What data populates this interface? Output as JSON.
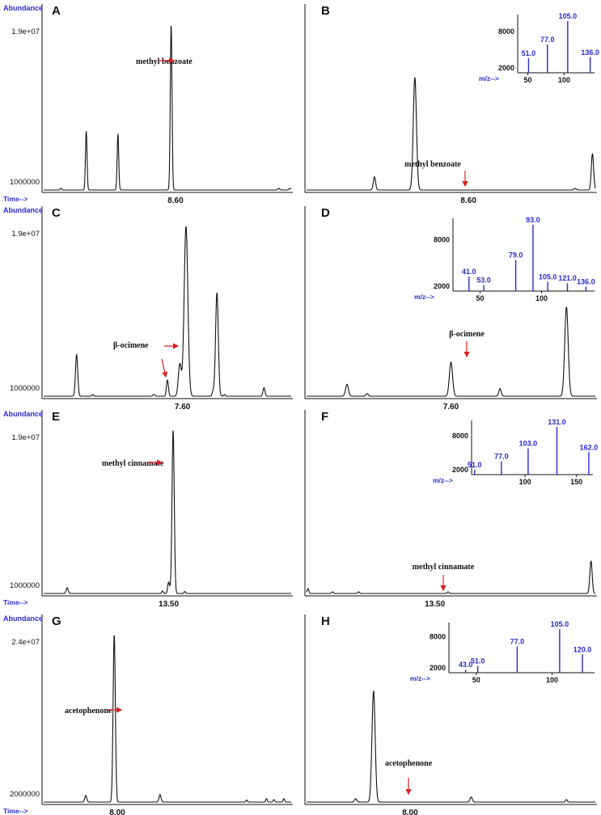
{
  "panels": [
    {
      "id": "A",
      "letter": "A",
      "type": "chromatogram",
      "show_abundance": true,
      "show_time": true,
      "y_labels": {
        "top": "1.9e+07",
        "bottom": "1000000"
      },
      "x_tick": "8.60",
      "annotation": {
        "text": "methyl benzoate",
        "position": "left"
      },
      "peaks": [
        {
          "x": 0.07,
          "h": 0.01,
          "w": 0.0035
        },
        {
          "x": 0.172,
          "h": 0.355,
          "w": 0.0032
        },
        {
          "x": 0.3,
          "h": 0.338,
          "w": 0.0032
        },
        {
          "x": 0.515,
          "h": 1.0,
          "w": 0.0035
        },
        {
          "x": 0.95,
          "h": 0.01,
          "w": 0.004
        },
        {
          "x": 0.995,
          "h": 0.01,
          "w": 0.004
        }
      ]
    },
    {
      "id": "B",
      "letter": "B",
      "type": "chromatogram",
      "show_abundance": false,
      "show_time": false,
      "x_tick": "8.60",
      "annotation": {
        "text": "methyl benzoate",
        "position": "above"
      },
      "peaks": [
        {
          "x": 0.235,
          "h": 0.08,
          "w": 0.004
        },
        {
          "x": 0.375,
          "h": 0.68,
          "w": 0.0055
        },
        {
          "x": 0.93,
          "h": 0.01,
          "w": 0.004
        },
        {
          "x": 0.99,
          "h": 0.22,
          "w": 0.004
        }
      ],
      "mass_spectrum": {
        "y_ticks": [
          "8000",
          "2000"
        ],
        "x_ticks": [
          "50",
          "100"
        ],
        "x_axis_label": "m/z-->",
        "x_range": [
          36,
          142
        ],
        "peaks": [
          {
            "mz": 51,
            "label": "51.0",
            "h": 0.28
          },
          {
            "mz": 77,
            "label": "77.0",
            "h": 0.55
          },
          {
            "mz": 105,
            "label": "105.0",
            "h": 1.0
          },
          {
            "mz": 136,
            "label": "136.0",
            "h": 0.3
          }
        ]
      }
    },
    {
      "id": "C",
      "letter": "C",
      "type": "chromatogram",
      "show_abundance": true,
      "show_time": false,
      "y_labels": {
        "top": "1.9e+07",
        "bottom": "1000000"
      },
      "x_tick": "7.60",
      "annotation": {
        "text": "β-ocimene",
        "position": "left"
      },
      "peaks": [
        {
          "x": 0.133,
          "h": 0.245,
          "w": 0.0045
        },
        {
          "x": 0.198,
          "h": 0.01,
          "w": 0.003
        },
        {
          "x": 0.445,
          "h": 0.01,
          "w": 0.004
        },
        {
          "x": 0.5,
          "h": 0.095,
          "w": 0.004
        },
        {
          "x": 0.55,
          "h": 0.19,
          "w": 0.006
        },
        {
          "x": 0.575,
          "h": 1.0,
          "w": 0.0075
        },
        {
          "x": 0.685,
          "h": 0.03,
          "w": 0.004
        },
        {
          "x": 0.7,
          "h": 0.61,
          "w": 0.0055
        },
        {
          "x": 0.73,
          "h": 0.01,
          "w": 0.003
        },
        {
          "x": 0.89,
          "h": 0.05,
          "w": 0.004
        }
      ]
    },
    {
      "id": "D",
      "letter": "D",
      "type": "chromatogram",
      "show_abundance": false,
      "show_time": false,
      "x_tick": "7.60",
      "annotation": {
        "text": "β-ocimene",
        "position": "above"
      },
      "peaks": [
        {
          "x": 0.14,
          "h": 0.07,
          "w": 0.005
        },
        {
          "x": 0.21,
          "h": 0.015,
          "w": 0.004
        },
        {
          "x": 0.5,
          "h": 0.2,
          "w": 0.0055
        },
        {
          "x": 0.67,
          "h": 0.045,
          "w": 0.004
        },
        {
          "x": 0.9,
          "h": 0.525,
          "w": 0.006
        }
      ],
      "mass_spectrum": {
        "y_ticks": [
          "8000",
          "2000"
        ],
        "x_ticks": [
          "50",
          "100"
        ],
        "x_axis_label": "m/z-->",
        "x_range": [
          28,
          143
        ],
        "peaks": [
          {
            "mz": 41,
            "label": "41.0",
            "h": 0.22
          },
          {
            "mz": 53,
            "label": "53.0",
            "h": 0.09
          },
          {
            "mz": 79,
            "label": "79.0",
            "h": 0.47
          },
          {
            "mz": 93,
            "label": "93.0",
            "h": 1.0
          },
          {
            "mz": 105,
            "label": "105.0",
            "h": 0.14
          },
          {
            "mz": 121,
            "label": "121.0",
            "h": 0.12
          },
          {
            "mz": 136,
            "label": "136.0",
            "h": 0.07
          }
        ]
      }
    },
    {
      "id": "E",
      "letter": "E",
      "type": "chromatogram",
      "show_abundance": true,
      "show_time": true,
      "y_labels": {
        "top": "1.9e+07",
        "bottom": "1000000"
      },
      "x_tick": "13.50",
      "annotation": {
        "text": "methyl cinnamate",
        "position": "left"
      },
      "peaks": [
        {
          "x": 0.095,
          "h": 0.035,
          "w": 0.004
        },
        {
          "x": 0.48,
          "h": 0.015,
          "w": 0.003
        },
        {
          "x": 0.505,
          "h": 0.07,
          "w": 0.004
        },
        {
          "x": 0.523,
          "h": 1.0,
          "w": 0.0045
        },
        {
          "x": 0.57,
          "h": 0.012,
          "w": 0.003
        }
      ]
    },
    {
      "id": "F",
      "letter": "F",
      "type": "chromatogram",
      "show_abundance": false,
      "show_time": false,
      "x_tick": "13.50",
      "annotation": {
        "text": "methyl cinnamate",
        "position": "above"
      },
      "peaks": [
        {
          "x": 0.005,
          "h": 0.03,
          "w": 0.003
        },
        {
          "x": 0.09,
          "h": 0.01,
          "w": 0.003
        },
        {
          "x": 0.18,
          "h": 0.01,
          "w": 0.003
        },
        {
          "x": 0.49,
          "h": 0.01,
          "w": 0.003
        },
        {
          "x": 0.985,
          "h": 0.2,
          "w": 0.004
        }
      ],
      "mass_spectrum": {
        "y_ticks": [
          "8000",
          "2000"
        ],
        "x_ticks": [
          "100",
          "150"
        ],
        "x_axis_label": "m/z-->",
        "x_range": [
          48,
          166
        ],
        "peaks": [
          {
            "mz": 51,
            "label": "51.0",
            "h": 0.1
          },
          {
            "mz": 77,
            "label": "77.0",
            "h": 0.28
          },
          {
            "mz": 103,
            "label": "103.0",
            "h": 0.55
          },
          {
            "mz": 131,
            "label": "131.0",
            "h": 1.0
          },
          {
            "mz": 162,
            "label": "162.0",
            "h": 0.47
          }
        ]
      }
    },
    {
      "id": "G",
      "letter": "G",
      "type": "chromatogram",
      "show_abundance": true,
      "show_time": true,
      "y_labels": {
        "top": "2.4e+07",
        "bottom": "2000000"
      },
      "x_tick": "8.00",
      "annotation": {
        "text": "acetophenone",
        "position": "left"
      },
      "peaks": [
        {
          "x": 0.17,
          "h": 0.04,
          "w": 0.004
        },
        {
          "x": 0.285,
          "h": 1.0,
          "w": 0.0045
        },
        {
          "x": 0.47,
          "h": 0.045,
          "w": 0.004
        },
        {
          "x": 0.82,
          "h": 0.012,
          "w": 0.003
        },
        {
          "x": 0.9,
          "h": 0.02,
          "w": 0.003
        },
        {
          "x": 0.93,
          "h": 0.015,
          "w": 0.003
        },
        {
          "x": 0.97,
          "h": 0.02,
          "w": 0.003
        }
      ]
    },
    {
      "id": "H",
      "letter": "H",
      "type": "chromatogram",
      "show_abundance": false,
      "show_time": false,
      "x_tick": "8.00",
      "annotation": {
        "text": "acetophenone",
        "position": "above"
      },
      "peaks": [
        {
          "x": 0.17,
          "h": 0.02,
          "w": 0.004
        },
        {
          "x": 0.232,
          "h": 0.665,
          "w": 0.0055
        },
        {
          "x": 0.57,
          "h": 0.03,
          "w": 0.004
        },
        {
          "x": 0.9,
          "h": 0.015,
          "w": 0.003
        }
      ],
      "mass_spectrum": {
        "y_ticks": [
          "8000",
          "2000"
        ],
        "x_ticks": [
          "50",
          "100"
        ],
        "x_axis_label": "m/z-->",
        "x_range": [
          32,
          128
        ],
        "peaks": [
          {
            "mz": 43,
            "label": "43.0",
            "h": 0.07
          },
          {
            "mz": 51,
            "label": "51.0",
            "h": 0.16
          },
          {
            "mz": 77,
            "label": "77.0",
            "h": 0.6
          },
          {
            "mz": 105,
            "label": "105.0",
            "h": 1.0
          },
          {
            "mz": 120,
            "label": "120.0",
            "h": 0.42
          }
        ]
      }
    }
  ],
  "labels": {
    "abundance": "Abundance",
    "time": "Time-->"
  },
  "colors": {
    "axis_label": "#2a2ad0",
    "arrow": "#e02020",
    "trace": "#111111"
  },
  "chart_data": {
    "type": "line",
    "note": "Eight GC-MS panels: chromatograms A, C, E, G; chromatograms B, D, F, H with inset mass spectra.",
    "mass_spectra": [
      {
        "panel": "B",
        "peaks_mz": [
          51.0,
          77.0,
          105.0,
          136.0
        ]
      },
      {
        "panel": "D",
        "peaks_mz": [
          41.0,
          53.0,
          79.0,
          93.0,
          105.0,
          121.0,
          136.0
        ]
      },
      {
        "panel": "F",
        "peaks_mz": [
          51.0,
          77.0,
          103.0,
          131.0,
          162.0
        ]
      },
      {
        "panel": "H",
        "peaks_mz": [
          43.0,
          51.0,
          77.0,
          105.0,
          120.0
        ]
      }
    ]
  }
}
